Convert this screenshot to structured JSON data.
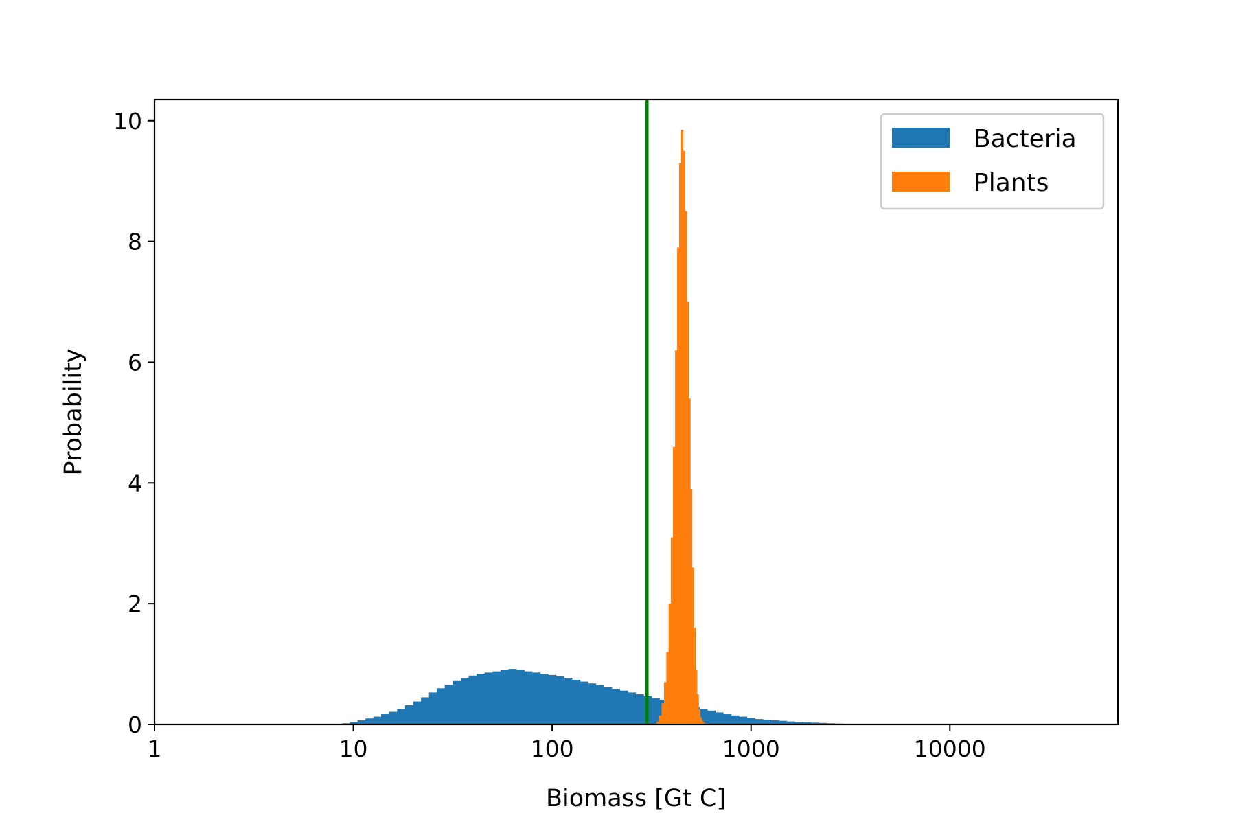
{
  "chart_data": {
    "type": "histogram",
    "xlabel": "Biomass [Gt C]",
    "ylabel": "Probability",
    "xscale": "log",
    "xlim": [
      1,
      70000
    ],
    "ylim": [
      0,
      10.35
    ],
    "xticks": [
      {
        "value": 1,
        "label": "1"
      },
      {
        "value": 10,
        "label": "10"
      },
      {
        "value": 100,
        "label": "100"
      },
      {
        "value": 1000,
        "label": "1000"
      },
      {
        "value": 10000,
        "label": "10000"
      }
    ],
    "yticks": [
      {
        "value": 0,
        "label": "0"
      },
      {
        "value": 2,
        "label": "2"
      },
      {
        "value": 4,
        "label": "4"
      },
      {
        "value": 6,
        "label": "6"
      },
      {
        "value": 8,
        "label": "8"
      },
      {
        "value": 10,
        "label": "10"
      }
    ],
    "legend_position": "upper right",
    "grid": false,
    "reference_line": {
      "x": 300,
      "color": "#008000"
    },
    "series": [
      {
        "name": "Bacteria",
        "color": "#1f77b4",
        "bin_edges": [
          8.0,
          8.8,
          9.6,
          10.5,
          11.5,
          12.6,
          13.8,
          15.1,
          16.6,
          18.2,
          20.0,
          21.9,
          24.0,
          26.3,
          28.8,
          31.6,
          34.7,
          38.0,
          41.7,
          45.7,
          50.1,
          55.0,
          60.3,
          66.1,
          72.4,
          79.4,
          87.1,
          95.5,
          104.7,
          114.8,
          125.9,
          138.0,
          151.4,
          166.0,
          182.0,
          199.5,
          218.8,
          239.9,
          263.0,
          288.4,
          316.2,
          346.7,
          380.2,
          416.9,
          457.1,
          501.2,
          549.5,
          602.6,
          660.7,
          724.4,
          794.3,
          871.0,
          955.0,
          1047.1,
          1148.2,
          1258.9,
          1380.4,
          1513.6,
          1659.6,
          1819.7,
          1995.3,
          2187.8,
          2398.8,
          2630.3,
          2884.0,
          3162.3,
          3467.4,
          3801.9
        ],
        "density": [
          0.01,
          0.02,
          0.04,
          0.07,
          0.1,
          0.13,
          0.17,
          0.21,
          0.26,
          0.32,
          0.38,
          0.45,
          0.53,
          0.6,
          0.66,
          0.72,
          0.77,
          0.81,
          0.84,
          0.86,
          0.88,
          0.9,
          0.92,
          0.9,
          0.88,
          0.86,
          0.84,
          0.82,
          0.8,
          0.77,
          0.74,
          0.71,
          0.68,
          0.65,
          0.62,
          0.59,
          0.56,
          0.53,
          0.5,
          0.47,
          0.44,
          0.41,
          0.38,
          0.35,
          0.32,
          0.29,
          0.26,
          0.23,
          0.2,
          0.17,
          0.15,
          0.13,
          0.11,
          0.09,
          0.08,
          0.07,
          0.06,
          0.05,
          0.04,
          0.035,
          0.03,
          0.025,
          0.02,
          0.015,
          0.012,
          0.01,
          0.008
        ]
      },
      {
        "name": "Plants",
        "color": "#ff7f0e",
        "bin_edges": [
          335,
          345,
          355,
          365,
          375,
          385,
          395,
          405,
          415,
          425,
          435,
          445,
          455,
          465,
          475,
          485,
          495,
          505,
          515,
          525,
          535,
          545,
          555,
          565,
          575,
          585,
          595
        ],
        "density": [
          0.05,
          0.15,
          0.35,
          0.7,
          1.2,
          2.0,
          3.1,
          4.6,
          6.2,
          7.9,
          9.3,
          9.85,
          9.5,
          8.5,
          7.0,
          5.4,
          3.9,
          2.6,
          1.6,
          0.9,
          0.5,
          0.25,
          0.12,
          0.06,
          0.03,
          0.01
        ]
      }
    ]
  }
}
